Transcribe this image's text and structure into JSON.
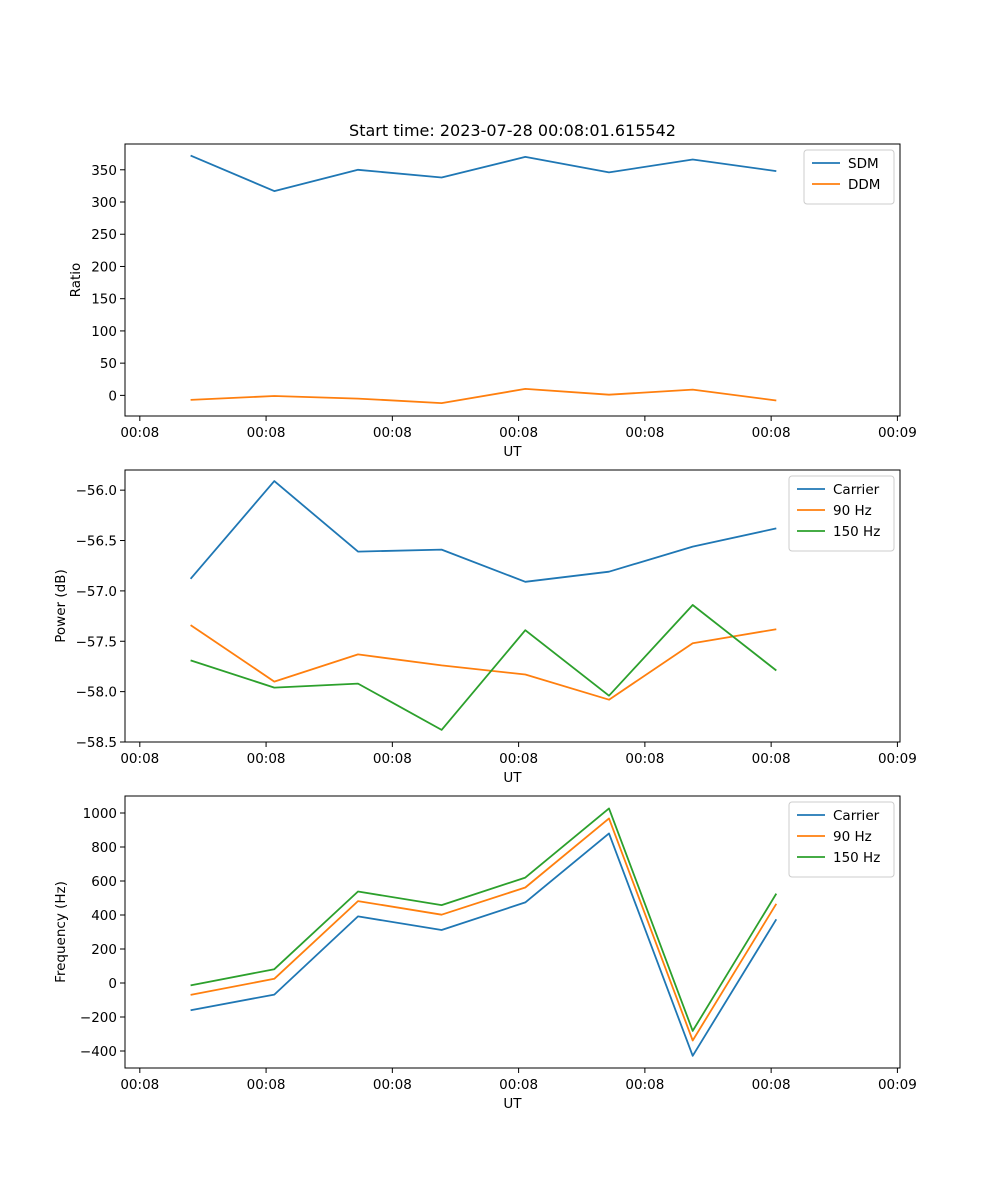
{
  "chart_data": [
    {
      "type": "line",
      "title": "Start time: 2023-07-28 00:08:01.615542",
      "xlabel": "UT",
      "ylabel": "Ratio",
      "x": [
        1,
        2,
        3,
        4,
        5,
        6,
        7,
        8
      ],
      "xlim": [
        0.216,
        9.478
      ],
      "xticks": [
        0.393,
        1.902,
        3.411,
        4.92,
        6.429,
        7.938,
        9.447
      ],
      "xtick_labels": [
        "00:08",
        "00:08",
        "00:08",
        "00:08",
        "00:08",
        "00:08",
        "00:09"
      ],
      "ylim": [
        -32,
        390
      ],
      "yticks": [
        0,
        50,
        100,
        150,
        200,
        250,
        300,
        350
      ],
      "ytick_labels": [
        "0",
        "50",
        "100",
        "150",
        "200",
        "250",
        "300",
        "350"
      ],
      "legend_position": "top-right",
      "series": [
        {
          "name": "SDM",
          "color": "#1f77b4",
          "values": [
            372,
            317,
            350,
            338,
            370,
            346,
            366,
            348
          ]
        },
        {
          "name": "DDM",
          "color": "#ff7f0e",
          "values": [
            -7,
            -1,
            -5,
            -12,
            10,
            1,
            9,
            -8
          ]
        }
      ]
    },
    {
      "type": "line",
      "title": "",
      "xlabel": "UT",
      "ylabel": "Power (dB)",
      "x": [
        1,
        2,
        3,
        4,
        5,
        6,
        7,
        8
      ],
      "xlim": [
        0.216,
        9.478
      ],
      "xticks": [
        0.393,
        1.902,
        3.411,
        4.92,
        6.429,
        7.938,
        9.447
      ],
      "xtick_labels": [
        "00:08",
        "00:08",
        "00:08",
        "00:08",
        "00:08",
        "00:08",
        "00:09"
      ],
      "ylim": [
        -58.5,
        -55.8
      ],
      "yticks": [
        -56.0,
        -56.5,
        -57.0,
        -57.5,
        -58.0,
        -58.5
      ],
      "ytick_labels": [
        "−56.0",
        "−56.5",
        "−57.0",
        "−57.5",
        "−58.0",
        "−58.5"
      ],
      "legend_position": "top-right",
      "series": [
        {
          "name": "Carrier",
          "color": "#1f77b4",
          "values": [
            -56.88,
            -55.91,
            -56.61,
            -56.59,
            -56.91,
            -56.81,
            -56.56,
            -56.38
          ]
        },
        {
          "name": "90 Hz",
          "color": "#ff7f0e",
          "values": [
            -57.34,
            -57.9,
            -57.63,
            -57.74,
            -57.83,
            -58.08,
            -57.52,
            -57.38
          ]
        },
        {
          "name": "150 Hz",
          "color": "#2ca02c",
          "values": [
            -57.69,
            -57.96,
            -57.92,
            -58.38,
            -57.39,
            -58.04,
            -57.14,
            -57.79
          ]
        }
      ]
    },
    {
      "type": "line",
      "title": "",
      "xlabel": "UT",
      "ylabel": "Frequency (Hz)",
      "x": [
        1,
        2,
        3,
        4,
        5,
        6,
        7,
        8
      ],
      "xlim": [
        0.216,
        9.478
      ],
      "xticks": [
        0.393,
        1.902,
        3.411,
        4.92,
        6.429,
        7.938,
        9.447
      ],
      "xtick_labels": [
        "00:08",
        "00:08",
        "00:08",
        "00:08",
        "00:08",
        "00:08",
        "00:09"
      ],
      "ylim": [
        -500,
        1100
      ],
      "yticks": [
        -400,
        -200,
        0,
        200,
        400,
        600,
        800,
        1000
      ],
      "ytick_labels": [
        "−400",
        "−200",
        "0",
        "200",
        "400",
        "600",
        "800",
        "1000"
      ],
      "legend_position": "top-right",
      "series": [
        {
          "name": "Carrier",
          "color": "#1f77b4",
          "values": [
            -160,
            -68,
            392,
            312,
            474,
            880,
            -428,
            375
          ]
        },
        {
          "name": "90 Hz",
          "color": "#ff7f0e",
          "values": [
            -70,
            25,
            482,
            402,
            562,
            968,
            -338,
            466
          ]
        },
        {
          "name": "150 Hz",
          "color": "#2ca02c",
          "values": [
            -14,
            81,
            538,
            458,
            620,
            1027,
            -282,
            526
          ]
        }
      ]
    }
  ]
}
